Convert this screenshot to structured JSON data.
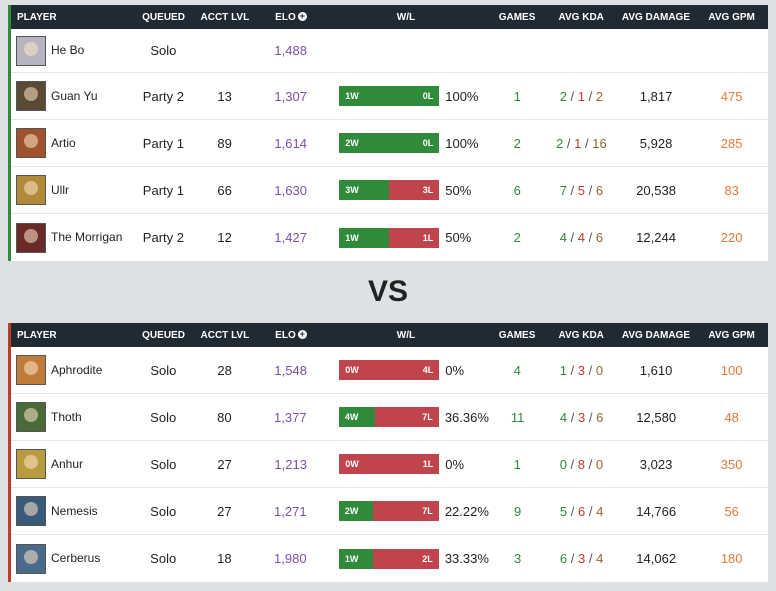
{
  "headers": {
    "player": "PLAYER",
    "queued": "QUEUED",
    "acct_lvl": "ACCT LVL",
    "elo": "ELO",
    "wl": "W/L",
    "games": "GAMES",
    "avg_kda": "AVG KDA",
    "avg_damage": "AVG DAMAGE",
    "avg_gpm": "AVG GPM"
  },
  "vs": "VS",
  "team1": [
    {
      "name": "He Bo",
      "queued": "Solo",
      "lvl": "",
      "elo": "1,488",
      "wins": null,
      "losses": null,
      "win_label": "",
      "loss_label": "",
      "pct": "",
      "games": "",
      "k": "",
      "d": "",
      "a": "",
      "damage": "",
      "gpm": "",
      "avatar_color": "#b7b3c0"
    },
    {
      "name": "Guan Yu",
      "queued": "Party 2",
      "lvl": "13",
      "elo": "1,307",
      "wins": 1,
      "losses": 0,
      "win_label": "1W",
      "loss_label": "0L",
      "pct": "100%",
      "games": "1",
      "k": "2",
      "d": "1",
      "a": "2",
      "damage": "1,817",
      "gpm": "475",
      "avatar_color": "#5a4a33"
    },
    {
      "name": "Artio",
      "queued": "Party 1",
      "lvl": "89",
      "elo": "1,614",
      "wins": 2,
      "losses": 0,
      "win_label": "2W",
      "loss_label": "0L",
      "pct": "100%",
      "games": "2",
      "k": "2",
      "d": "1",
      "a": "16",
      "damage": "5,928",
      "gpm": "285",
      "avatar_color": "#a0522d"
    },
    {
      "name": "Ullr",
      "queued": "Party 1",
      "lvl": "66",
      "elo": "1,630",
      "wins": 3,
      "losses": 3,
      "win_label": "3W",
      "loss_label": "3L",
      "pct": "50%",
      "games": "6",
      "k": "7",
      "d": "5",
      "a": "6",
      "damage": "20,538",
      "gpm": "83",
      "avatar_color": "#b08a3a"
    },
    {
      "name": "The Morrigan",
      "queued": "Party 2",
      "lvl": "12",
      "elo": "1,427",
      "wins": 1,
      "losses": 1,
      "win_label": "1W",
      "loss_label": "1L",
      "pct": "50%",
      "games": "2",
      "k": "4",
      "d": "4",
      "a": "6",
      "damage": "12,244",
      "gpm": "220",
      "avatar_color": "#6b2a2a"
    }
  ],
  "team2": [
    {
      "name": "Aphrodite",
      "queued": "Solo",
      "lvl": "28",
      "elo": "1,548",
      "wins": 0,
      "losses": 4,
      "win_label": "0W",
      "loss_label": "4L",
      "pct": "0%",
      "games": "4",
      "k": "1",
      "d": "3",
      "a": "0",
      "damage": "1,610",
      "gpm": "100",
      "avatar_color": "#c07a3a"
    },
    {
      "name": "Thoth",
      "queued": "Solo",
      "lvl": "80",
      "elo": "1,377",
      "wins": 4,
      "losses": 7,
      "win_label": "4W",
      "loss_label": "7L",
      "pct": "36.36%",
      "games": "11",
      "k": "4",
      "d": "3",
      "a": "6",
      "damage": "12,580",
      "gpm": "48",
      "avatar_color": "#4a6a3a"
    },
    {
      "name": "Anhur",
      "queued": "Solo",
      "lvl": "27",
      "elo": "1,213",
      "wins": 0,
      "losses": 1,
      "win_label": "0W",
      "loss_label": "1L",
      "pct": "0%",
      "games": "1",
      "k": "0",
      "d": "8",
      "a": "0",
      "damage": "3,023",
      "gpm": "350",
      "avatar_color": "#b89a40"
    },
    {
      "name": "Nemesis",
      "queued": "Solo",
      "lvl": "27",
      "elo": "1,271",
      "wins": 2,
      "losses": 7,
      "win_label": "2W",
      "loss_label": "7L",
      "pct": "22.22%",
      "games": "9",
      "k": "5",
      "d": "6",
      "a": "4",
      "damage": "14,766",
      "gpm": "56",
      "avatar_color": "#3a5a7a"
    },
    {
      "name": "Cerberus",
      "queued": "Solo",
      "lvl": "18",
      "elo": "1,980",
      "wins": 1,
      "losses": 2,
      "win_label": "1W",
      "loss_label": "2L",
      "pct": "33.33%",
      "games": "3",
      "k": "6",
      "d": "3",
      "a": "4",
      "damage": "14,062",
      "gpm": "180",
      "avatar_color": "#4a6a8a"
    }
  ]
}
